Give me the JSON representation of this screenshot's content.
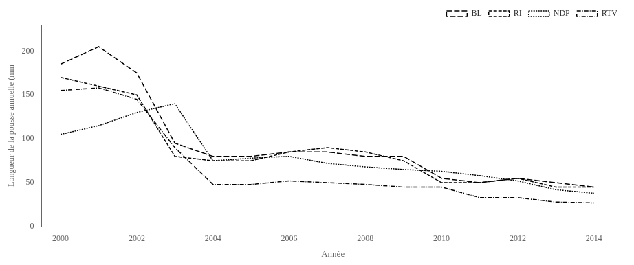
{
  "chart_data": {
    "type": "line",
    "x": [
      2000,
      2001,
      2002,
      2003,
      2004,
      2005,
      2006,
      2007,
      2008,
      2009,
      2010,
      2011,
      2012,
      2013,
      2014
    ],
    "series": [
      {
        "name": "BL",
        "color": "black",
        "line_style": "longdash",
        "values": [
          185,
          205,
          175,
          95,
          80,
          80,
          85,
          85,
          80,
          80,
          55,
          50,
          55,
          50,
          45
        ]
      },
      {
        "name": "RI",
        "color": "black",
        "line_style": "dashed",
        "values": [
          170,
          160,
          150,
          80,
          75,
          75,
          85,
          90,
          85,
          75,
          50,
          50,
          55,
          45,
          45
        ]
      },
      {
        "name": "NDP",
        "color": "black",
        "line_style": "dotted",
        "values": [
          105,
          115,
          130,
          140,
          75,
          78,
          80,
          72,
          68,
          65,
          63,
          58,
          52,
          42,
          38
        ]
      },
      {
        "name": "RTV",
        "color": "black",
        "line_style": "dashdot",
        "values": [
          155,
          158,
          145,
          90,
          48,
          48,
          52,
          50,
          48,
          45,
          45,
          33,
          33,
          28,
          27
        ]
      }
    ],
    "xlabel": "Année",
    "ylabel": "Longueur de la pousse annuelle (mm",
    "xlim": [
      1999.5,
      2014.8
    ],
    "xticks": [
      2000,
      2002,
      2004,
      2006,
      2008,
      2010,
      2012,
      2014
    ],
    "ylim": [
      0,
      230
    ],
    "yticks": [
      0,
      50,
      100,
      150,
      200
    ],
    "grid": false,
    "legend": "upper right"
  }
}
